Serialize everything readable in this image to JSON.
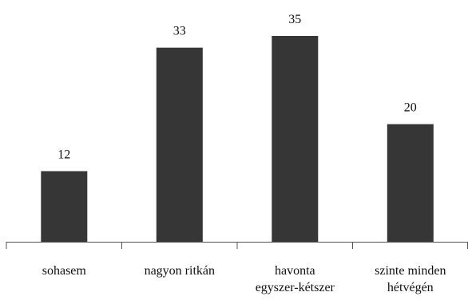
{
  "chart_data": {
    "type": "bar",
    "categories": [
      [
        "sohasem"
      ],
      [
        "nagyon ritkán"
      ],
      [
        "havonta",
        "egyszer-kétszer"
      ],
      [
        "szinte minden",
        "hétvégén"
      ]
    ],
    "values": [
      12,
      33,
      35,
      20
    ],
    "data_labels": [
      "12",
      "33",
      "35",
      "20"
    ],
    "title": "",
    "xlabel": "",
    "ylabel": "",
    "ylim": [
      0,
      35
    ],
    "bar_color": "#363636",
    "axis_color": "#555555",
    "grid": false,
    "legend": "none"
  }
}
